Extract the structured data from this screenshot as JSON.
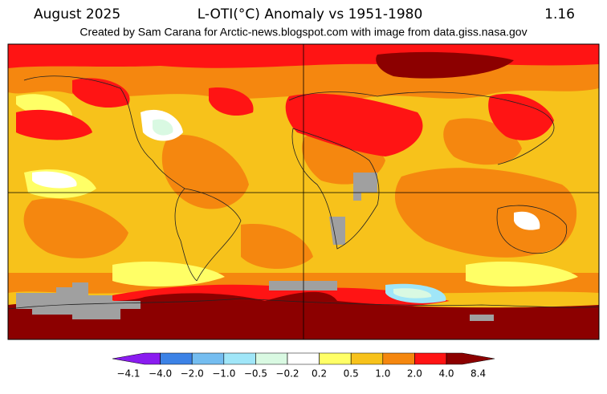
{
  "header": {
    "month": "August 2025",
    "title": "L-OTI(°C) Anomaly vs 1951-1980",
    "global_value": "1.16",
    "subtitle": "Created by Sam Carana for Arctic-news.blogspot.com with image from data.giss.nasa.gov"
  },
  "colorbar": {
    "ticks": [
      "−4.1",
      "−4.0",
      "−2.0",
      "−1.0",
      "−0.5",
      "−0.2",
      "0.2",
      "0.5",
      "1.0",
      "2.0",
      "4.0",
      "8.4"
    ],
    "colors": [
      "#8a1cf0",
      "#3c82e6",
      "#74bdf0",
      "#a0e6f8",
      "#d9f9e2",
      "#ffffff",
      "#ffff66",
      "#f7c21b",
      "#f5870f",
      "#ff1414",
      "#8c0000"
    ]
  }
}
